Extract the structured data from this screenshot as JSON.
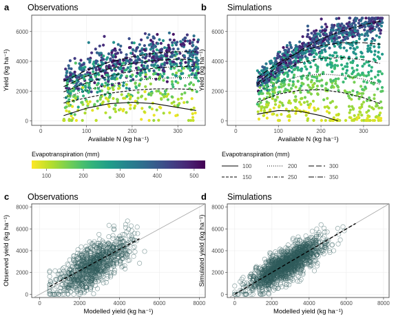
{
  "colors": {
    "viridis": [
      "#440154",
      "#482878",
      "#3e4989",
      "#31688e",
      "#26828e",
      "#1f9e89",
      "#35b779",
      "#6ece58",
      "#b5de2b",
      "#fde725"
    ],
    "scatter_point": "#2f5b5b",
    "reference_line": "#aaaaaa"
  },
  "panels": {
    "a": {
      "label": "a",
      "title": "Observations"
    },
    "b": {
      "label": "b",
      "title": "Simulations"
    },
    "c": {
      "label": "c",
      "title": "Observations"
    },
    "d": {
      "label": "d",
      "title": "Simulations"
    }
  },
  "legends": {
    "color": {
      "title": "Evapotranspiration (mm)",
      "ticks": [
        "100",
        "200",
        "300",
        "400",
        "500"
      ],
      "tick_values": [
        100,
        200,
        300,
        400,
        500
      ],
      "range": [
        60,
        530
      ]
    },
    "linetype": {
      "title": "Evapotranspiration (mm)",
      "items": [
        {
          "label": "100",
          "dash": "solid"
        },
        {
          "label": "150",
          "dash": "dashed-short"
        },
        {
          "label": "200",
          "dash": "dotted"
        },
        {
          "label": "250",
          "dash": "dash-dot"
        },
        {
          "label": "300",
          "dash": "long-dash"
        },
        {
          "label": "350",
          "dash": "long-dash-dot"
        }
      ]
    }
  },
  "chart_data": [
    {
      "panel": "a",
      "type": "scatter",
      "title": "Observations",
      "xlabel": "Available N (kg ha⁻¹)",
      "ylabel": "Yield (kg ha⁻¹)",
      "xlim": [
        -20,
        360
      ],
      "ylim": [
        -300,
        7100
      ],
      "xticks": [
        0,
        100,
        200,
        300
      ],
      "yticks": [
        0,
        2000,
        4000,
        6000
      ],
      "x_tick_labels": [
        "0",
        "100",
        "200",
        "300"
      ],
      "y_tick_labels": [
        "0",
        "2000",
        "4000",
        "6000"
      ],
      "point_cloud": {
        "x_range": [
          50,
          345
        ],
        "y_range": [
          0,
          6900
        ],
        "color_by": "evapotranspiration",
        "n_points": "approx. 900"
      },
      "curves": [
        {
          "et": 100,
          "dash": "solid",
          "x": [
            50,
            100,
            150,
            200,
            250,
            300,
            340
          ],
          "y": [
            350,
            850,
            1150,
            1250,
            1150,
            900,
            700
          ]
        },
        {
          "et": 150,
          "dash": "dashed-short",
          "x": [
            50,
            100,
            150,
            200,
            250,
            300,
            340
          ],
          "y": [
            1200,
            1550,
            1850,
            2050,
            2150,
            2150,
            2100
          ]
        },
        {
          "et": 200,
          "dash": "dotted",
          "x": [
            50,
            100,
            150,
            200,
            250,
            300,
            340
          ],
          "y": [
            1550,
            2050,
            2450,
            2700,
            2850,
            2900,
            2900
          ]
        },
        {
          "et": 250,
          "dash": "dash-dot",
          "x": [
            50,
            100,
            150,
            200,
            250,
            300,
            340
          ],
          "y": [
            1950,
            2550,
            3000,
            3350,
            3550,
            3650,
            3650
          ]
        },
        {
          "et": 300,
          "dash": "long-dash",
          "x": [
            50,
            100,
            150,
            200,
            250,
            300,
            340
          ],
          "y": [
            2300,
            3000,
            3500,
            3850,
            4050,
            4150,
            4100
          ]
        },
        {
          "et": 350,
          "dash": "long-dash-dot",
          "x": [
            50,
            100,
            150,
            200,
            250,
            300,
            340
          ],
          "y": [
            2650,
            3400,
            3950,
            4300,
            4550,
            4650,
            4650
          ]
        }
      ]
    },
    {
      "panel": "b",
      "type": "scatter",
      "title": "Simulations",
      "xlabel": "Available N (kg ha⁻¹)",
      "ylabel": "Yield (kg ha⁻¹)",
      "xlim": [
        -20,
        360
      ],
      "ylim": [
        -300,
        7100
      ],
      "xticks": [
        0,
        100,
        200,
        300
      ],
      "yticks": [
        0,
        2000,
        4000,
        6000
      ],
      "x_tick_labels": [
        "0",
        "100",
        "200",
        "300"
      ],
      "y_tick_labels": [
        "0",
        "2000",
        "4000",
        "6000"
      ],
      "point_cloud": {
        "x_range": [
          50,
          345
        ],
        "y_range": [
          0,
          6900
        ],
        "color_by": "evapotranspiration",
        "n_points": "approx. 1200"
      },
      "curves": [
        {
          "et": 100,
          "dash": "solid",
          "x": [
            50,
            100,
            150,
            200,
            240
          ],
          "y": [
            450,
            700,
            650,
            350,
            0
          ]
        },
        {
          "et": 150,
          "dash": "dashed-short",
          "x": [
            50,
            100,
            150,
            200,
            250,
            300,
            340
          ],
          "y": [
            1250,
            1800,
            2050,
            2100,
            1900,
            1550,
            1150
          ]
        },
        {
          "et": 200,
          "dash": "dotted",
          "x": [
            50,
            100,
            150,
            200,
            250,
            300,
            340
          ],
          "y": [
            1950,
            2600,
            3000,
            3150,
            3050,
            2800,
            2450
          ]
        },
        {
          "et": 250,
          "dash": "dash-dot",
          "x": [
            50,
            100,
            150,
            200,
            250,
            300,
            340
          ],
          "y": [
            2400,
            3300,
            3900,
            4200,
            4250,
            4100,
            3850
          ]
        },
        {
          "et": 300,
          "dash": "long-dash",
          "x": [
            50,
            100,
            150,
            200,
            250,
            300,
            340
          ],
          "y": [
            2900,
            3900,
            4650,
            5050,
            5250,
            5250,
            5150
          ]
        },
        {
          "et": 350,
          "dash": "long-dash-dot",
          "x": [
            50,
            100,
            150,
            200,
            250,
            300,
            340
          ],
          "y": [
            2500,
            3700,
            4700,
            5500,
            6050,
            6450,
            6700
          ]
        }
      ]
    },
    {
      "panel": "c",
      "type": "scatter",
      "title": "Observations",
      "xlabel": "Modelled yield (kg ha⁻¹)",
      "ylabel": "Observed yield (kg ha⁻¹)",
      "xlim": [
        -400,
        8300
      ],
      "ylim": [
        -300,
        8300
      ],
      "xticks": [
        0,
        2000,
        4000,
        6000,
        8000
      ],
      "yticks": [
        0,
        2000,
        4000,
        6000,
        8000
      ],
      "x_tick_labels": [
        "0",
        "2000",
        "4000",
        "6000",
        "8000"
      ],
      "y_tick_labels": [
        "0",
        "2000",
        "4000",
        "6000",
        "8000"
      ],
      "point_cloud": {
        "x_range": [
          500,
          5500
        ],
        "y_range": [
          0,
          7900
        ],
        "marker": "open-circle",
        "n_points": "approx. 900"
      },
      "lines": [
        {
          "name": "1:1",
          "style": "solid-grey",
          "x": [
            -300,
            8300
          ],
          "y": [
            -300,
            8300
          ]
        },
        {
          "name": "fit",
          "style": "dashed-black",
          "x": [
            500,
            5000
          ],
          "y": [
            700,
            5100
          ]
        }
      ]
    },
    {
      "panel": "d",
      "type": "scatter",
      "title": "Simulations",
      "xlabel": "Modelled yield (kg ha⁻¹)",
      "ylabel": "Simulated yield (kg ha⁻¹)",
      "xlim": [
        -400,
        8300
      ],
      "ylim": [
        -300,
        8300
      ],
      "xticks": [
        0,
        2000,
        4000,
        6000,
        8000
      ],
      "yticks": [
        0,
        2000,
        4000,
        6000,
        8000
      ],
      "x_tick_labels": [
        "0",
        "2000",
        "4000",
        "6000",
        "8000"
      ],
      "y_tick_labels": [
        "0",
        "2000",
        "4000",
        "6000",
        "8000"
      ],
      "point_cloud": {
        "x_range": [
          0,
          7900
        ],
        "y_range": [
          0,
          7200
        ],
        "marker": "open-circle",
        "n_points": "approx. 1500"
      },
      "lines": [
        {
          "name": "1:1",
          "style": "solid-grey",
          "x": [
            -300,
            8300
          ],
          "y": [
            -300,
            8300
          ]
        },
        {
          "name": "fit",
          "style": "dashed-black",
          "x": [
            0,
            6500
          ],
          "y": [
            0,
            6500
          ]
        }
      ]
    }
  ]
}
